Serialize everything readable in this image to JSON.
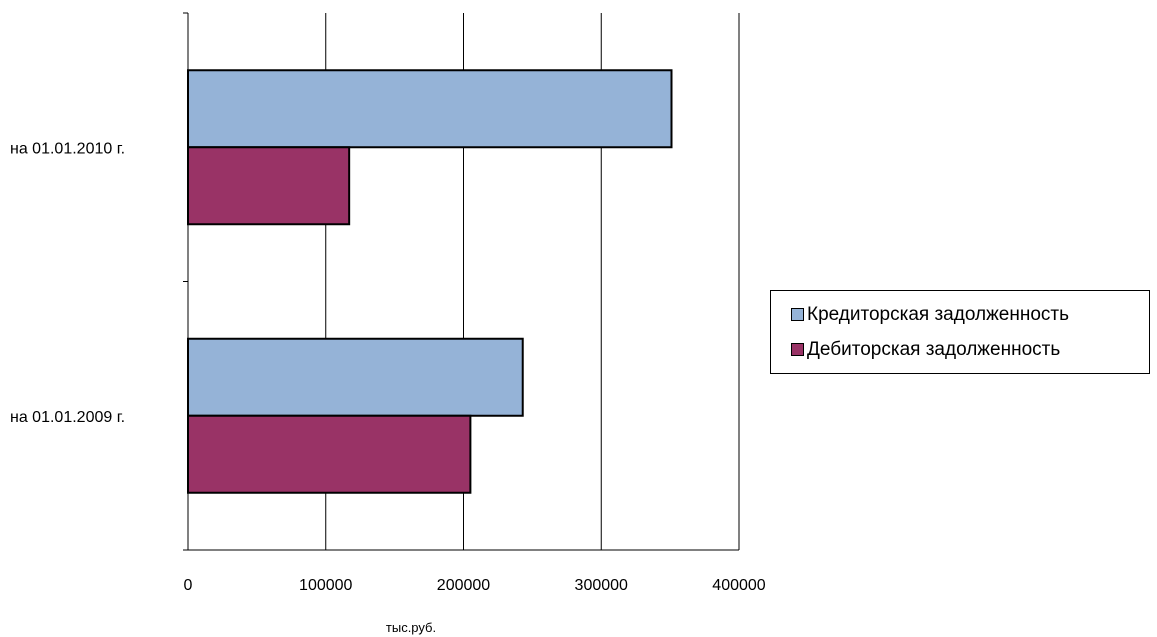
{
  "chart_data": {
    "type": "bar",
    "orientation": "horizontal",
    "categories": [
      "на 01.01.2010 г.",
      "на 01.01.2009 г."
    ],
    "series": [
      {
        "name": "Кредиторская задолженность",
        "values": [
          351000,
          243000
        ],
        "color": "#95B3D7"
      },
      {
        "name": "Дебиторская задолженность",
        "values": [
          117000,
          205000
        ],
        "color": "#993366"
      }
    ],
    "xlabel": "тыс.руб.",
    "ylabel": "",
    "xlim": [
      0,
      400000
    ],
    "x_ticks": [
      "0",
      "100000",
      "200000",
      "300000",
      "400000"
    ],
    "grid": "vertical major gridlines",
    "legend_position": "right"
  }
}
